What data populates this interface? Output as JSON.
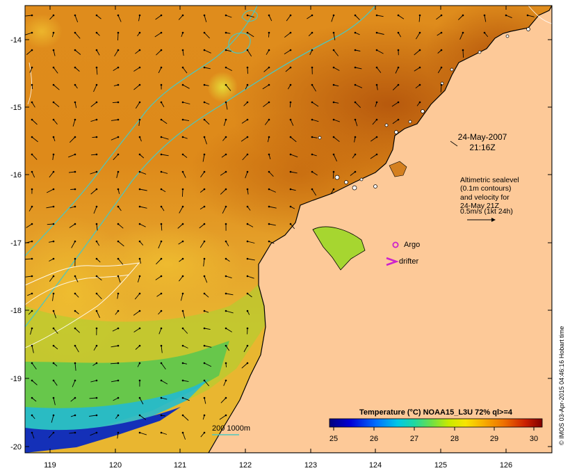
{
  "map": {
    "lat_ticks": [
      "-14",
      "-15",
      "-16",
      "-17",
      "-18",
      "-19",
      "-20"
    ],
    "lon_ticks": [
      "119",
      "120",
      "121",
      "122",
      "123",
      "124",
      "125",
      "126"
    ],
    "date_line1": "24-May-2007",
    "date_line2": "21:16Z",
    "altimetry_lines": [
      "Altimetric sealevel",
      "(0.1m contours)",
      "and velocity for",
      "24-May 21Z",
      "0.5m/s (1kt 24h)"
    ],
    "argo_label": "Argo",
    "drifter_label": "drifter",
    "depth_label": "200  1000m",
    "colorbar_title": "Temperature (°C) NOAA15_L3U 72% ql>=4",
    "colorbar_ticks": [
      "25",
      "26",
      "27",
      "28",
      "29",
      "30"
    ],
    "credit": "© IMOS 03-Apr-2015 04:46:16 Hobart time"
  },
  "colors": {
    "land": "#fdc998",
    "argo": "#cc22cc",
    "isobath": "#4cc7bf",
    "warm": "#c9650a",
    "cold": "#1a1a9a"
  }
}
